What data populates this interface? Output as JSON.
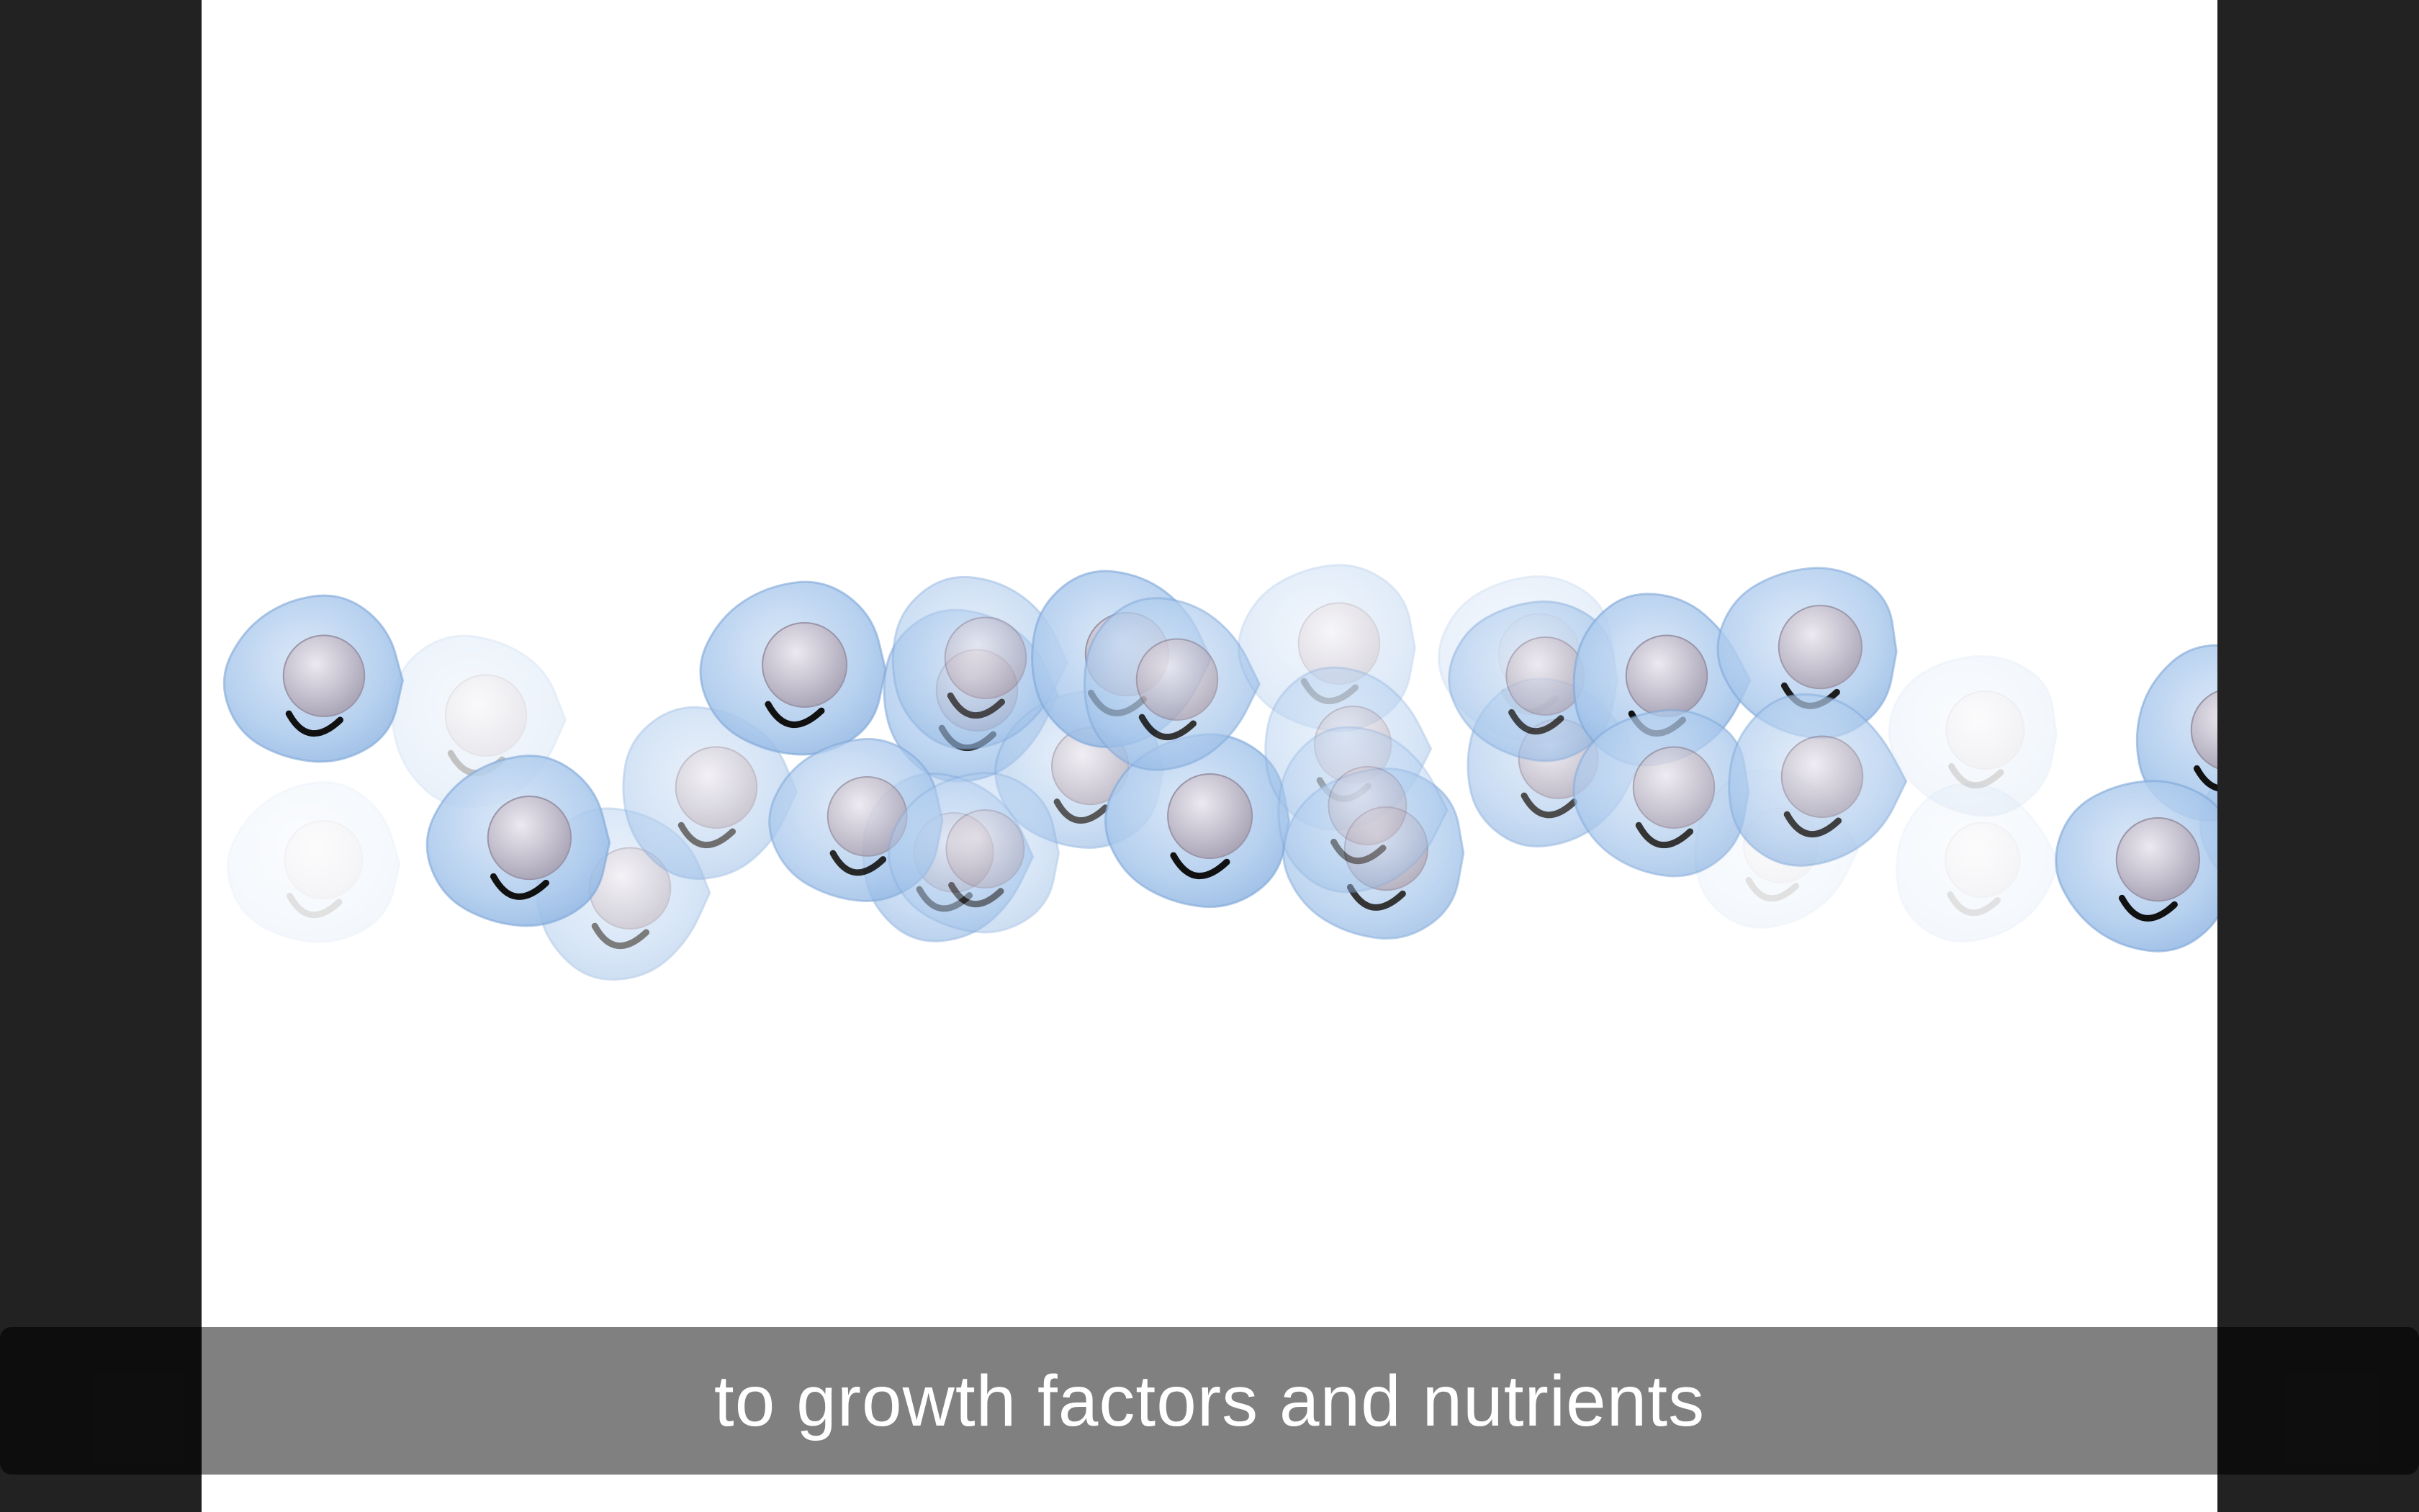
{
  "caption": {
    "text": "to growth factors and nutrients"
  },
  "colors": {
    "letterbox": "#222222",
    "frame_background": "#ffffff",
    "caption_background": "#808080",
    "caption_text": "#ffffff",
    "cell_body": "#a9c8ec",
    "cell_outline": "#7ea6d8",
    "nucleus": "#c0bcc9",
    "cell_mark": "#111111"
  },
  "illustration": {
    "subject": "cell-cluster-icon"
  }
}
